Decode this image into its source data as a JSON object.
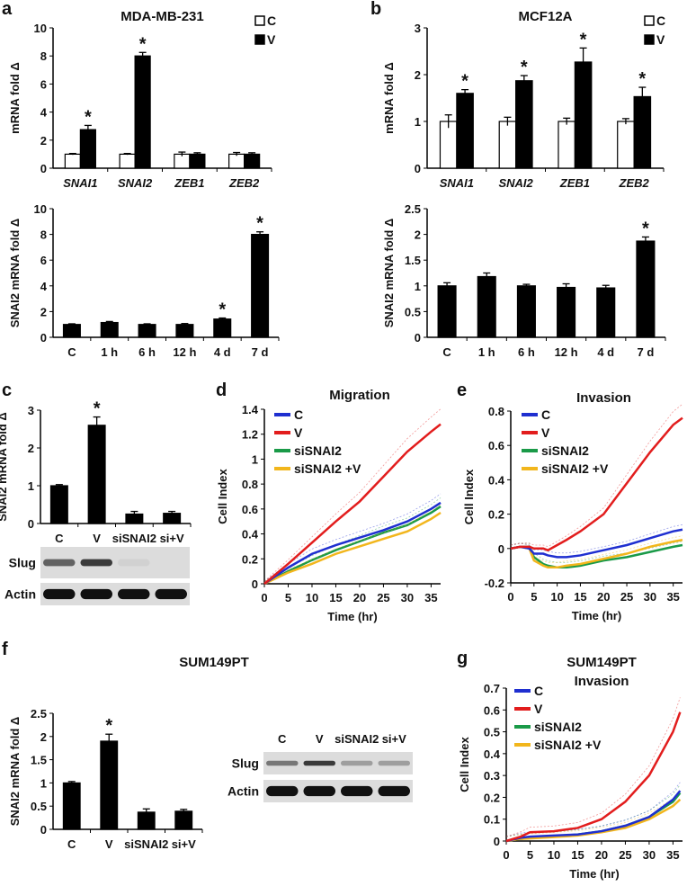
{
  "panel_letters": [
    "a",
    "b",
    "c",
    "d",
    "e",
    "f",
    "g"
  ],
  "panel_f_title": "SUM149PT",
  "colors": {
    "C": "#1f2fd0",
    "V": "#e21d1d",
    "siSNAI2": "#1a9a48",
    "siSNAI2_V": "#f2b61c",
    "bar_fill": "#000000",
    "bar_open": "#ffffff"
  },
  "chart_data": [
    {
      "id": "a-top",
      "type": "bar",
      "title": "MDA-MB-231",
      "ylabel": "mRNA fold Δ",
      "ylim": [
        0,
        10
      ],
      "yticks": [
        0,
        2,
        4,
        6,
        8,
        10
      ],
      "categories": [
        "SNAI1",
        "SNAI2",
        "ZEB1",
        "ZEB2"
      ],
      "legend": [
        "C",
        "V"
      ],
      "series": [
        {
          "name": "C",
          "values": [
            1,
            1,
            1,
            1
          ],
          "errors": [
            0.05,
            0.05,
            0.15,
            0.12
          ],
          "stars": [
            false,
            false,
            false,
            false
          ]
        },
        {
          "name": "V",
          "values": [
            2.75,
            8.0,
            1.0,
            1.0
          ],
          "errors": [
            0.3,
            0.25,
            0.1,
            0.1
          ],
          "stars": [
            true,
            true,
            false,
            false
          ]
        }
      ]
    },
    {
      "id": "a-bottom",
      "type": "bar",
      "title": "",
      "ylabel": "SNAI2 mRNA fold Δ",
      "ylim": [
        0,
        10
      ],
      "yticks": [
        0,
        2,
        4,
        6,
        8,
        10
      ],
      "categories": [
        "C",
        "1 h",
        "6 h",
        "12 h",
        "4 d",
        "7 d"
      ],
      "series": [
        {
          "name": "SNAI2",
          "values": [
            1,
            1.15,
            1,
            1,
            1.42,
            8.0
          ],
          "errors": [
            0.05,
            0.08,
            0.05,
            0.07,
            0.08,
            0.2
          ],
          "stars": [
            false,
            false,
            false,
            false,
            true,
            true
          ]
        }
      ]
    },
    {
      "id": "b-top",
      "type": "bar",
      "title": "MCF12A",
      "ylabel": "mRNA fold Δ",
      "ylim": [
        0,
        3
      ],
      "yticks": [
        0,
        1,
        2,
        3
      ],
      "categories": [
        "SNAI1",
        "SNAI2",
        "ZEB1",
        "ZEB2"
      ],
      "legend": [
        "C",
        "V"
      ],
      "series": [
        {
          "name": "C",
          "values": [
            1,
            1,
            1,
            1
          ],
          "errors": [
            0.14,
            0.09,
            0.07,
            0.06
          ],
          "stars": [
            false,
            false,
            false,
            false
          ]
        },
        {
          "name": "V",
          "values": [
            1.6,
            1.87,
            2.27,
            1.53
          ],
          "errors": [
            0.08,
            0.11,
            0.3,
            0.2
          ],
          "stars": [
            true,
            true,
            true,
            true
          ]
        }
      ]
    },
    {
      "id": "b-bottom",
      "type": "bar",
      "title": "",
      "ylabel": "SNAI2 mRNA fold Δ",
      "ylim": [
        0,
        2.5
      ],
      "yticks": [
        "0",
        "0.5",
        "1",
        "1.5",
        "2",
        "2.5"
      ],
      "categories": [
        "C",
        "1 h",
        "6 h",
        "12 h",
        "4 d",
        "7 d"
      ],
      "series": [
        {
          "name": "SNAI2",
          "values": [
            1,
            1.18,
            1,
            0.97,
            0.96,
            1.87
          ],
          "errors": [
            0.06,
            0.07,
            0.03,
            0.07,
            0.05,
            0.08
          ],
          "stars": [
            false,
            false,
            false,
            false,
            false,
            true
          ]
        }
      ]
    },
    {
      "id": "c",
      "type": "bar",
      "title": "",
      "ylabel": "SNAI2 mRNA fold Δ",
      "ylim": [
        0,
        3
      ],
      "yticks": [
        0,
        1,
        2,
        3
      ],
      "categories": [
        "C",
        "V",
        "siSNAI2",
        "si+V"
      ],
      "series": [
        {
          "name": "SNAI2",
          "values": [
            1,
            2.6,
            0.25,
            0.27
          ],
          "errors": [
            0.03,
            0.22,
            0.07,
            0.05
          ],
          "stars": [
            false,
            true,
            false,
            false
          ]
        }
      ],
      "blot": {
        "lanes": [],
        "rows": [
          {
            "label": "Slug",
            "band_intensity": [
              0.6,
              0.8,
              0.05,
              0.0
            ]
          },
          {
            "label": "Actin",
            "band_intensity": [
              1,
              1,
              1,
              1
            ]
          }
        ]
      }
    },
    {
      "id": "d",
      "type": "line",
      "title": "Migration",
      "xlabel": "Time (hr)",
      "ylabel": "Cell Index",
      "xlim": [
        0,
        37
      ],
      "ylim": [
        0,
        1.4
      ],
      "xticks": [
        0,
        5,
        10,
        15,
        20,
        25,
        30,
        35
      ],
      "yticks": [
        "0",
        "0.2",
        "0.4",
        "0.6",
        "0.8",
        "1",
        "1.2",
        "1.4"
      ],
      "x": [
        0,
        5,
        10,
        15,
        20,
        25,
        30,
        35,
        37
      ],
      "series": [
        {
          "name": "C",
          "color": "#1f2fd0",
          "values": [
            0,
            0.13,
            0.24,
            0.31,
            0.37,
            0.43,
            0.5,
            0.6,
            0.65
          ]
        },
        {
          "name": "V",
          "color": "#e21d1d",
          "values": [
            0,
            0.16,
            0.33,
            0.5,
            0.66,
            0.86,
            1.06,
            1.22,
            1.28
          ]
        },
        {
          "name": "siSNAI2",
          "color": "#1a9a48",
          "values": [
            0,
            0.1,
            0.19,
            0.27,
            0.34,
            0.41,
            0.47,
            0.57,
            0.62
          ]
        },
        {
          "name": "siSNAI2 +V",
          "color": "#f2b61c",
          "values": [
            0,
            0.09,
            0.16,
            0.24,
            0.3,
            0.36,
            0.42,
            0.52,
            0.57
          ]
        }
      ]
    },
    {
      "id": "e",
      "type": "line",
      "title": "Invasion",
      "xlabel": "Time (hr)",
      "ylabel": "Cell Index",
      "xlim": [
        0,
        37
      ],
      "ylim": [
        -0.2,
        0.8
      ],
      "xticks": [
        0,
        5,
        10,
        15,
        20,
        25,
        30,
        35
      ],
      "yticks": [
        "-0.2",
        "0",
        "0.2",
        "0.4",
        "0.6",
        "0.8"
      ],
      "x": [
        0,
        2,
        4,
        5,
        7,
        8,
        10,
        12,
        15,
        20,
        25,
        30,
        35,
        37
      ],
      "series": [
        {
          "name": "C",
          "color": "#1f2fd0",
          "values": [
            0,
            0.01,
            0,
            -0.03,
            -0.03,
            -0.04,
            -0.05,
            -0.05,
            -0.04,
            -0.01,
            0.02,
            0.06,
            0.1,
            0.11
          ]
        },
        {
          "name": "V",
          "color": "#e21d1d",
          "values": [
            0,
            0.01,
            0.01,
            0,
            0,
            -0.01,
            0.02,
            0.05,
            0.1,
            0.2,
            0.38,
            0.56,
            0.72,
            0.76
          ]
        },
        {
          "name": "siSNAI2",
          "color": "#1a9a48",
          "values": [
            0,
            0.01,
            0.01,
            -0.05,
            -0.09,
            -0.1,
            -0.11,
            -0.11,
            -0.1,
            -0.07,
            -0.05,
            -0.02,
            0.01,
            0.02
          ]
        },
        {
          "name": "siSNAI2 +V",
          "color": "#f2b61c",
          "values": [
            0,
            0.01,
            0,
            -0.07,
            -0.1,
            -0.11,
            -0.11,
            -0.1,
            -0.09,
            -0.06,
            -0.03,
            0.01,
            0.04,
            0.05
          ]
        }
      ]
    },
    {
      "id": "f",
      "type": "bar",
      "title": "",
      "ylabel": "SNAI2 mRNA fold Δ",
      "ylim": [
        0,
        2.5
      ],
      "yticks": [
        "0",
        "0.5",
        "1",
        "1.5",
        "2",
        "2.5"
      ],
      "categories": [
        "C",
        "V",
        "siSNAI2",
        "si+V"
      ],
      "series": [
        {
          "name": "SNAI2",
          "values": [
            1,
            1.9,
            0.37,
            0.39
          ],
          "errors": [
            0.03,
            0.15,
            0.07,
            0.04
          ],
          "stars": [
            false,
            true,
            false,
            false
          ]
        }
      ],
      "blot": {
        "lanes": [
          "C",
          "V",
          "siSNAI2",
          "si+V"
        ],
        "rows": [
          {
            "label": "Slug",
            "band_intensity": [
              0.5,
              0.8,
              0.3,
              0.3
            ]
          },
          {
            "label": "Actin",
            "band_intensity": [
              1,
              1,
              1,
              1
            ]
          }
        ]
      }
    },
    {
      "id": "g",
      "type": "line",
      "title": "SUM149PT",
      "subtitle": "Invasion",
      "xlabel": "Time (hr)",
      "ylabel": "Cell Index",
      "xlim": [
        0,
        37
      ],
      "ylim": [
        0,
        0.7
      ],
      "xticks": [
        0,
        5,
        10,
        15,
        20,
        25,
        30,
        35
      ],
      "yticks": [
        "0",
        "0.1",
        "0.2",
        "0.3",
        "0.4",
        "0.5",
        "0.6",
        "0.7"
      ],
      "x": [
        0,
        3,
        5,
        10,
        15,
        20,
        25,
        30,
        35,
        36.5
      ],
      "series": [
        {
          "name": "C",
          "color": "#1f2fd0",
          "values": [
            0,
            0.015,
            0.02,
            0.025,
            0.03,
            0.045,
            0.07,
            0.11,
            0.19,
            0.23
          ]
        },
        {
          "name": "V",
          "color": "#e21d1d",
          "values": [
            0,
            0.02,
            0.04,
            0.045,
            0.06,
            0.1,
            0.18,
            0.3,
            0.5,
            0.59
          ]
        },
        {
          "name": "siSNAI2",
          "color": "#1a9a48",
          "values": [
            0,
            0.01,
            0.015,
            0.02,
            0.03,
            0.045,
            0.07,
            0.11,
            0.18,
            0.22
          ]
        },
        {
          "name": "siSNAI2 +V",
          "color": "#f2b61c",
          "values": [
            0,
            0.01,
            0.012,
            0.018,
            0.025,
            0.04,
            0.06,
            0.1,
            0.16,
            0.19
          ]
        }
      ]
    }
  ]
}
